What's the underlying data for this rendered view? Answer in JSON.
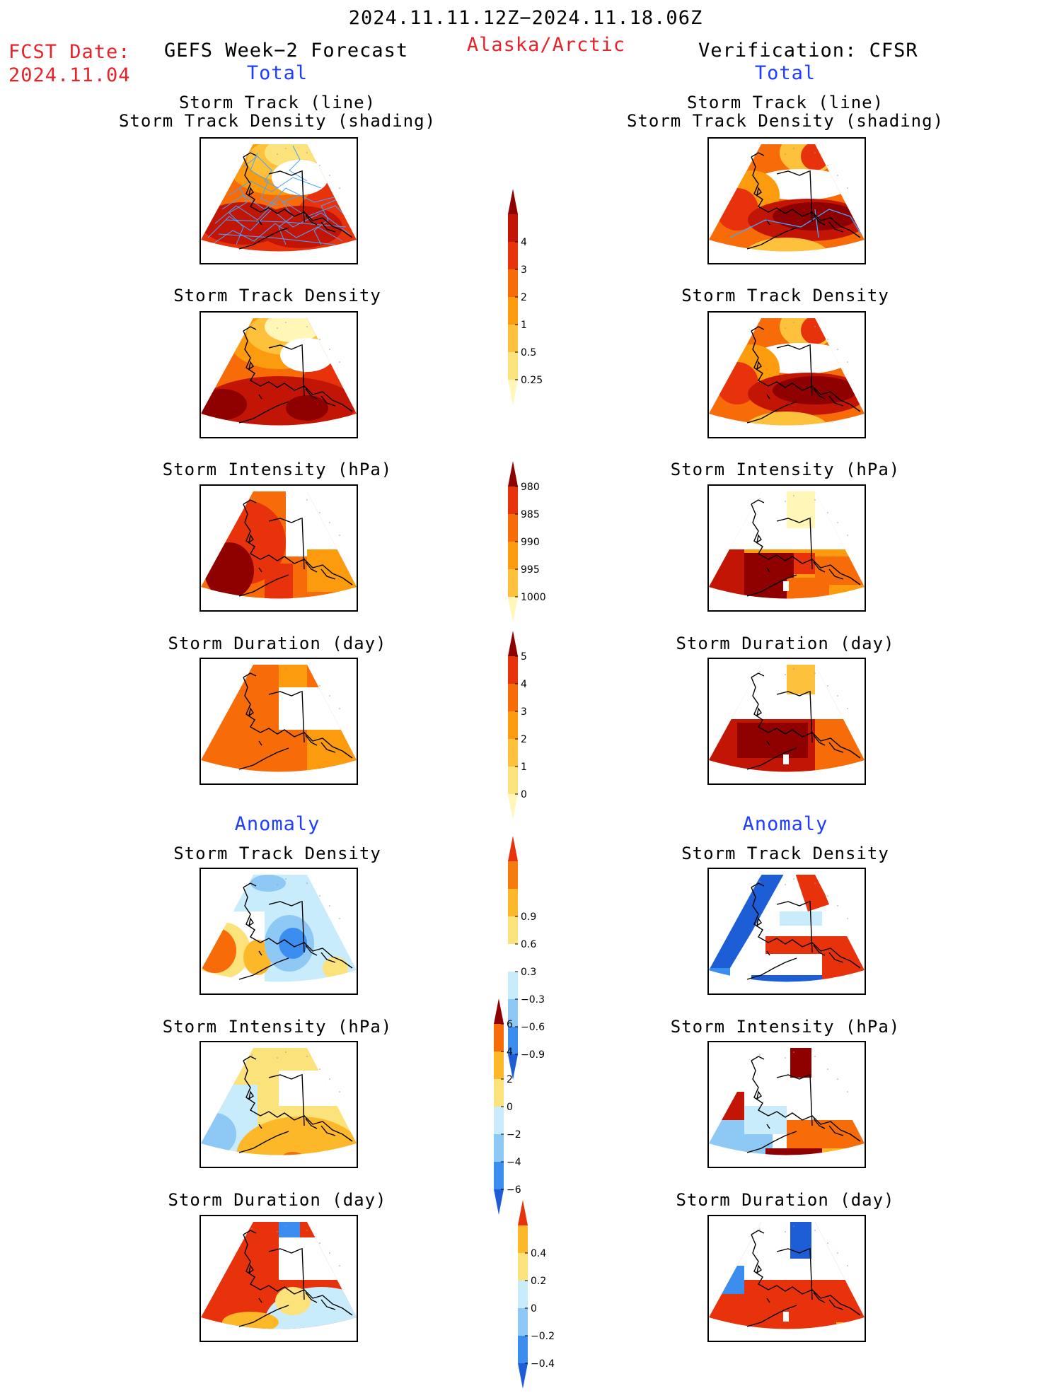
{
  "header": {
    "date_range": "2024.11.11.12Z−2024.11.18.06Z",
    "fcst_label": "FCST Date:",
    "fcst_date": "2024.11.04",
    "left_title": "GEFS Week−2 Forecast",
    "region": "Alaska/Arctic",
    "right_title": "Verification: CFSR"
  },
  "sections": {
    "total": "Total",
    "anomaly": "Anomaly"
  },
  "panel_titles": {
    "track_line": "Storm Track (line)",
    "track_density_shading": "Storm Track Density (shading)",
    "track_density": "Storm Track Density",
    "intensity": "Storm Intensity (hPa)",
    "duration": "Storm Duration (day)"
  },
  "colorbars": {
    "density": {
      "ticks": [
        "0.25",
        "0.5",
        "1",
        "2",
        "3",
        "4"
      ],
      "colors": [
        "#fff6b8",
        "#fce27a",
        "#fdc13b",
        "#fb9b0d",
        "#f76b08",
        "#e8320c",
        "#c21506",
        "#8f0000"
      ]
    },
    "intensity": {
      "ticks": [
        "1000",
        "995",
        "990",
        "985",
        "980"
      ],
      "colors": [
        "#fff6b8",
        "#fdc13b",
        "#fb9b0d",
        "#f76b08",
        "#e8320c",
        "#8f0000"
      ]
    },
    "duration": {
      "ticks": [
        "0",
        "1",
        "2",
        "3",
        "4",
        "5"
      ],
      "colors": [
        "#fff6b8",
        "#fce27a",
        "#fdc13b",
        "#fb9b0d",
        "#f76b08",
        "#e8320c",
        "#8f0000"
      ]
    },
    "anom_density": {
      "ticks": [
        "−0.9",
        "−0.6",
        "−0.3",
        "0.3",
        "0.6",
        "0.9"
      ],
      "colors": [
        "#1d5ed6",
        "#3b8ef0",
        "#8ec8f5",
        "#c8ecfb",
        "#ffffff",
        "#fce27a",
        "#fdb82a",
        "#f77a0d",
        "#e8320c"
      ]
    },
    "anom_intensity": {
      "ticks": [
        "−6",
        "−4",
        "−2",
        "0",
        "2",
        "4",
        "6"
      ],
      "colors": [
        "#1d5ed6",
        "#3b8ef0",
        "#8ec8f5",
        "#c8ecfb",
        "#fce27a",
        "#fdb82a",
        "#f76b08",
        "#8f0000"
      ]
    },
    "anom_duration": {
      "ticks": [
        "−0.4",
        "−0.2",
        "0",
        "0.2",
        "0.4"
      ],
      "colors": [
        "#1d5ed6",
        "#3b8ef0",
        "#8ec8f5",
        "#c8ecfb",
        "#fce27a",
        "#fdb82a",
        "#e8320c"
      ]
    }
  }
}
